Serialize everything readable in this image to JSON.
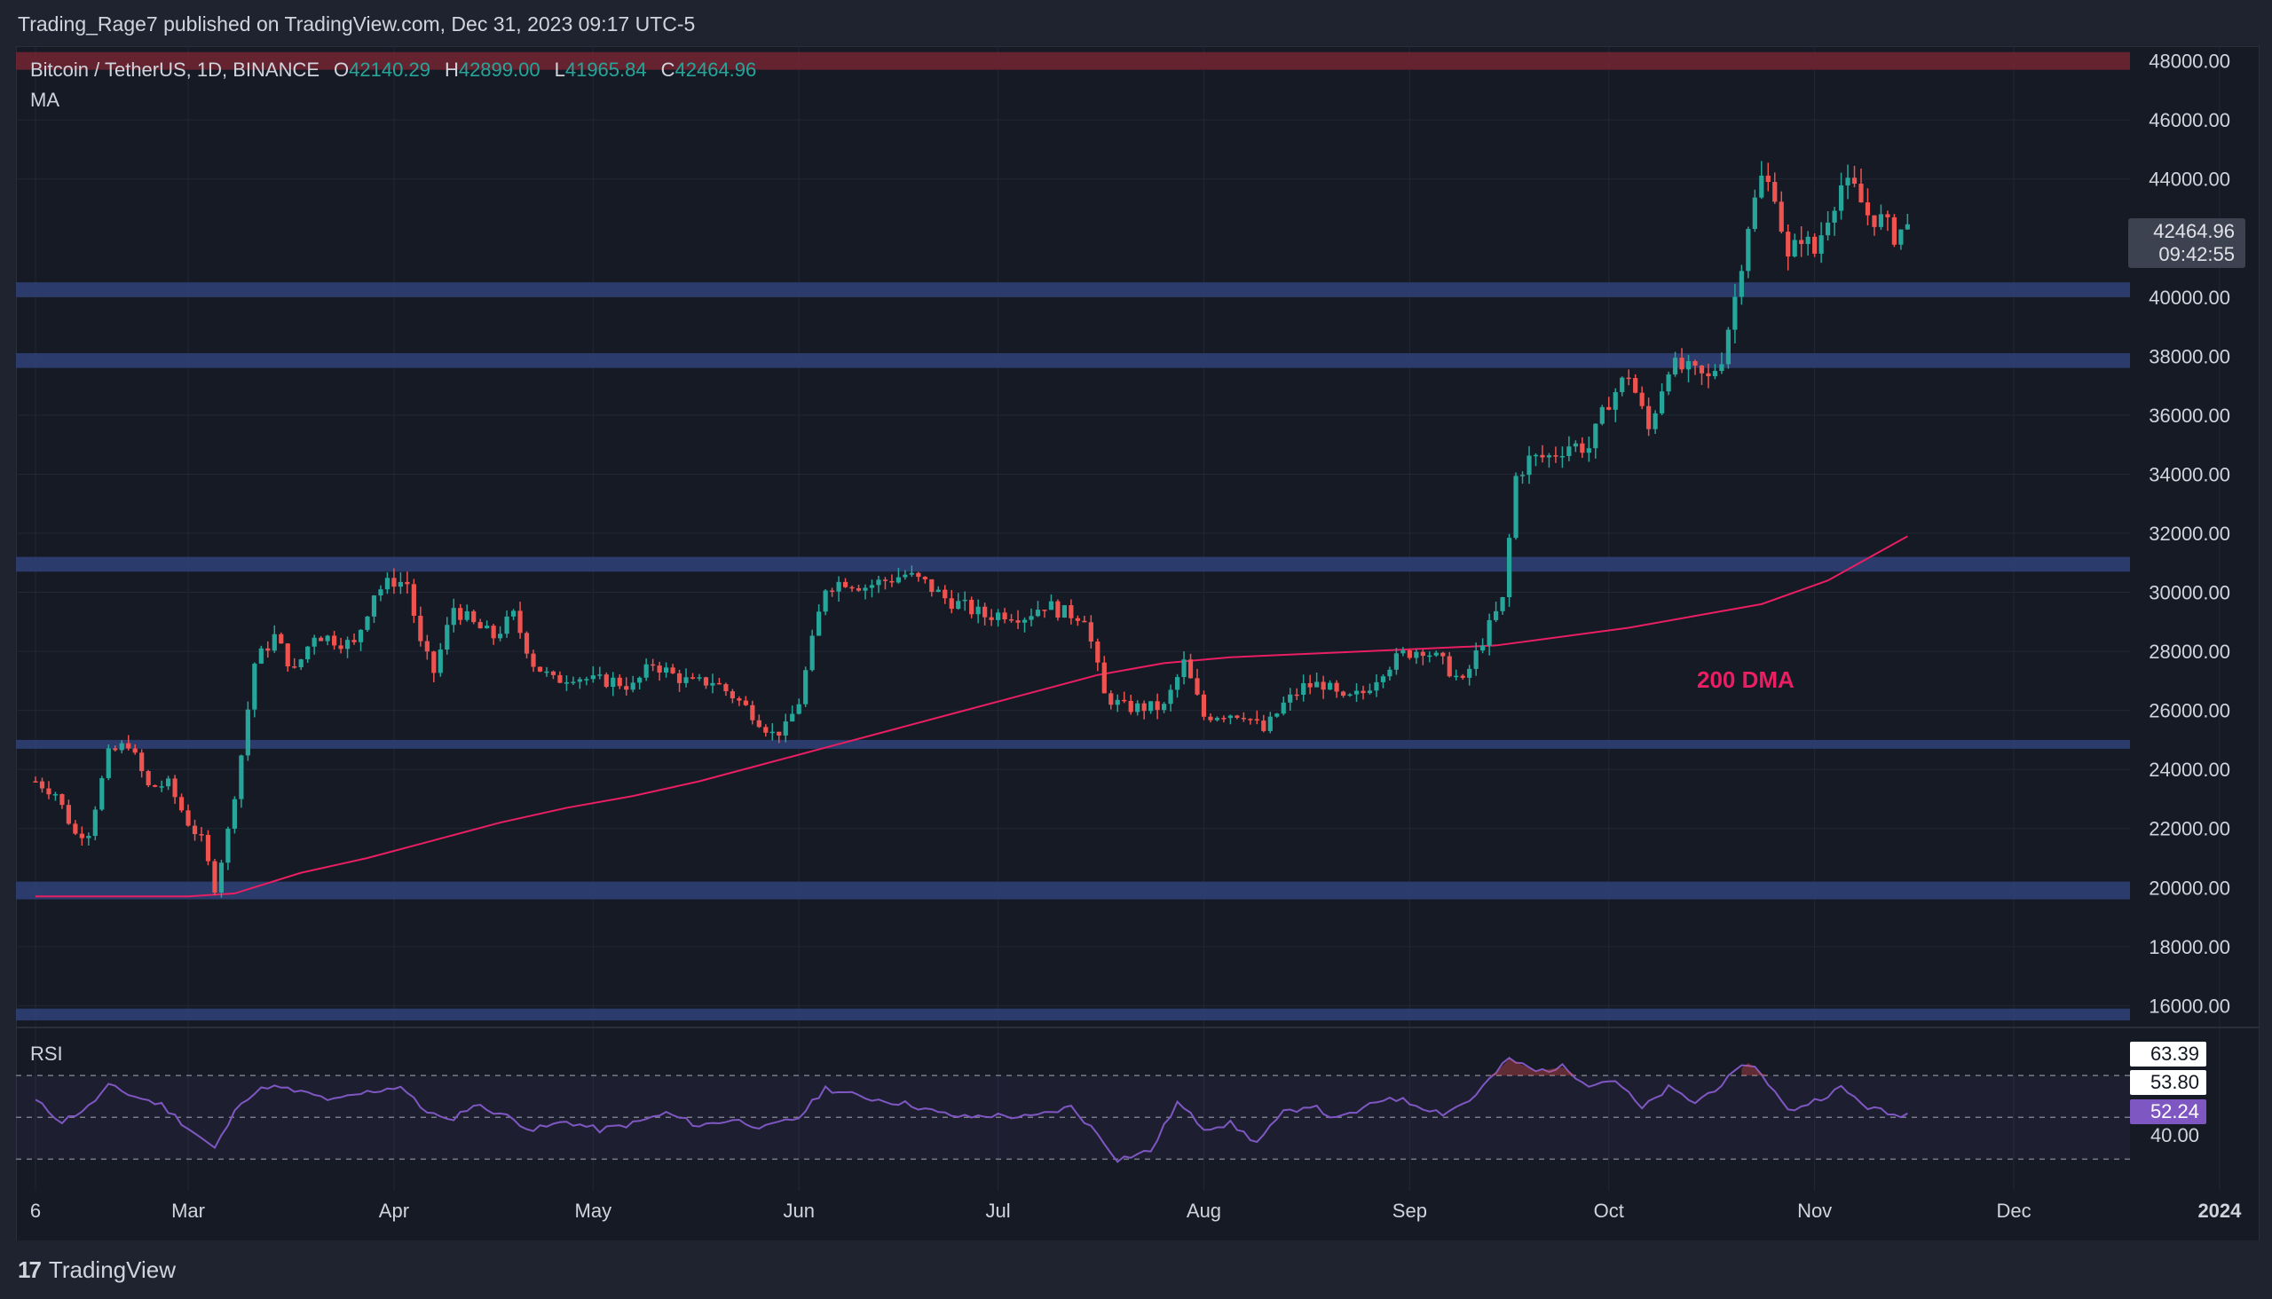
{
  "header": {
    "publish_line": "Trading_Rage7 published on TradingView.com, Dec 31, 2023 09:17 UTC-5"
  },
  "legend": {
    "symbol": "Bitcoin / TetherUS, 1D, BINANCE",
    "o_label": "O",
    "o_value": "42140.29",
    "h_label": "H",
    "h_value": "42899.00",
    "l_label": "L",
    "l_value": "41965.84",
    "c_label": "C",
    "c_value": "42464.96",
    "ma_label": "MA"
  },
  "price_badge": {
    "price": "42464.96",
    "countdown": "09:42:55"
  },
  "rsi": {
    "label": "RSI",
    "badge_top": "63.39",
    "badge_mid": "53.80",
    "badge_current": "52.24",
    "badge_low": "40.00"
  },
  "annotation": {
    "dma_label": "200 DMA"
  },
  "footer": {
    "logo_mark": "17",
    "logo_text": "TradingView"
  },
  "colors": {
    "up": "#26a69a",
    "down": "#ef5350",
    "ma": "#e91e63",
    "zone": "#2e3f73",
    "resistance": "#6e2532",
    "rsi_line": "#7e57c2"
  },
  "chart_data": {
    "type": "candlestick",
    "ylim": [
      15500,
      48500
    ],
    "y_ticks": [
      "48000.00",
      "46000.00",
      "44000.00",
      "40000.00",
      "38000.00",
      "36000.00",
      "34000.00",
      "32000.00",
      "30000.00",
      "28000.00",
      "26000.00",
      "24000.00",
      "22000.00",
      "20000.00",
      "18000.00",
      "16000.00"
    ],
    "x_ticks": [
      {
        "label": "6",
        "day": 0
      },
      {
        "label": "Mar",
        "day": 23
      },
      {
        "label": "Apr",
        "day": 54
      },
      {
        "label": "May",
        "day": 84
      },
      {
        "label": "Jun",
        "day": 115
      },
      {
        "label": "Jul",
        "day": 145
      },
      {
        "label": "Aug",
        "day": 176
      },
      {
        "label": "Sep",
        "day": 207
      },
      {
        "label": "Oct",
        "day": 237
      },
      {
        "label": "Nov",
        "day": 268
      },
      {
        "label": "Dec",
        "day": 298
      },
      {
        "label": "2024",
        "day": 329
      }
    ],
    "support_resistance_zones": [
      {
        "low": 47700,
        "high": 48300,
        "kind": "resistance"
      },
      {
        "low": 40000,
        "high": 40500,
        "kind": "support"
      },
      {
        "low": 37600,
        "high": 38100,
        "kind": "support"
      },
      {
        "low": 30700,
        "high": 31200,
        "kind": "support"
      },
      {
        "low": 24700,
        "high": 25000,
        "kind": "support"
      },
      {
        "low": 19600,
        "high": 20200,
        "kind": "support"
      },
      {
        "low": 15500,
        "high": 15900,
        "kind": "support"
      }
    ],
    "close_keypoints": [
      [
        0,
        23600
      ],
      [
        3,
        23200
      ],
      [
        6,
        21800
      ],
      [
        8,
        21900
      ],
      [
        11,
        24500
      ],
      [
        14,
        24900
      ],
      [
        17,
        23400
      ],
      [
        20,
        23500
      ],
      [
        23,
        22200
      ],
      [
        25,
        21600
      ],
      [
        27,
        20000
      ],
      [
        29,
        21900
      ],
      [
        31,
        24500
      ],
      [
        33,
        27600
      ],
      [
        36,
        28500
      ],
      [
        39,
        27300
      ],
      [
        42,
        28600
      ],
      [
        45,
        28400
      ],
      [
        48,
        28200
      ],
      [
        51,
        30000
      ],
      [
        54,
        30400
      ],
      [
        56,
        30300
      ],
      [
        58,
        28200
      ],
      [
        60,
        27300
      ],
      [
        63,
        29500
      ],
      [
        66,
        28900
      ],
      [
        69,
        28500
      ],
      [
        72,
        29200
      ],
      [
        75,
        27600
      ],
      [
        78,
        27000
      ],
      [
        81,
        27200
      ],
      [
        84,
        27000
      ],
      [
        87,
        27000
      ],
      [
        90,
        26800
      ],
      [
        93,
        27600
      ],
      [
        96,
        27200
      ],
      [
        99,
        26900
      ],
      [
        102,
        27000
      ],
      [
        105,
        26500
      ],
      [
        108,
        25900
      ],
      [
        111,
        25200
      ],
      [
        113,
        25400
      ],
      [
        115,
        26300
      ],
      [
        117,
        28300
      ],
      [
        119,
        30200
      ],
      [
        122,
        30400
      ],
      [
        125,
        30200
      ],
      [
        128,
        30400
      ],
      [
        131,
        30600
      ],
      [
        134,
        30300
      ],
      [
        137,
        29800
      ],
      [
        140,
        29500
      ],
      [
        143,
        29200
      ],
      [
        146,
        29300
      ],
      [
        149,
        29200
      ],
      [
        152,
        29600
      ],
      [
        155,
        29300
      ],
      [
        158,
        29200
      ],
      [
        161,
        26500
      ],
      [
        164,
        26100
      ],
      [
        167,
        26100
      ],
      [
        170,
        26100
      ],
      [
        173,
        27600
      ],
      [
        176,
        25800
      ],
      [
        179,
        25900
      ],
      [
        182,
        25900
      ],
      [
        185,
        25300
      ],
      [
        188,
        26200
      ],
      [
        191,
        26800
      ],
      [
        194,
        26900
      ],
      [
        197,
        26300
      ],
      [
        200,
        26600
      ],
      [
        203,
        27400
      ],
      [
        206,
        27900
      ],
      [
        209,
        28100
      ],
      [
        212,
        27600
      ],
      [
        215,
        26900
      ],
      [
        218,
        28400
      ],
      [
        221,
        29700
      ],
      [
        223,
        33900
      ],
      [
        225,
        34500
      ],
      [
        228,
        34600
      ],
      [
        231,
        35000
      ],
      [
        234,
        34900
      ],
      [
        237,
        36500
      ],
      [
        240,
        37400
      ],
      [
        243,
        35500
      ],
      [
        246,
        37700
      ],
      [
        249,
        37500
      ],
      [
        252,
        37200
      ],
      [
        254,
        38000
      ],
      [
        256,
        40000
      ],
      [
        258,
        42500
      ],
      [
        260,
        44000
      ],
      [
        262,
        43600
      ],
      [
        264,
        41200
      ],
      [
        266,
        42100
      ],
      [
        268,
        41500
      ],
      [
        270,
        42800
      ],
      [
        272,
        43800
      ],
      [
        274,
        43600
      ],
      [
        276,
        42800
      ],
      [
        278,
        42600
      ],
      [
        280,
        42100
      ],
      [
        282,
        42465
      ]
    ],
    "ma200_keypoints": [
      [
        0,
        19700
      ],
      [
        23,
        19700
      ],
      [
        30,
        19800
      ],
      [
        40,
        20500
      ],
      [
        50,
        21000
      ],
      [
        60,
        21600
      ],
      [
        70,
        22200
      ],
      [
        80,
        22700
      ],
      [
        90,
        23100
      ],
      [
        100,
        23600
      ],
      [
        110,
        24200
      ],
      [
        120,
        24800
      ],
      [
        130,
        25400
      ],
      [
        140,
        26000
      ],
      [
        150,
        26600
      ],
      [
        160,
        27200
      ],
      [
        170,
        27600
      ],
      [
        180,
        27800
      ],
      [
        190,
        27900
      ],
      [
        200,
        28000
      ],
      [
        210,
        28100
      ],
      [
        220,
        28200
      ],
      [
        230,
        28500
      ],
      [
        240,
        28800
      ],
      [
        250,
        29200
      ],
      [
        260,
        29600
      ],
      [
        270,
        30400
      ],
      [
        282,
        31900
      ]
    ],
    "rsi_keypoints": [
      [
        0,
        58
      ],
      [
        4,
        48
      ],
      [
        8,
        55
      ],
      [
        11,
        65
      ],
      [
        15,
        60
      ],
      [
        19,
        56
      ],
      [
        23,
        45
      ],
      [
        27,
        35
      ],
      [
        31,
        58
      ],
      [
        35,
        65
      ],
      [
        40,
        62
      ],
      [
        45,
        58
      ],
      [
        50,
        62
      ],
      [
        55,
        65
      ],
      [
        58,
        55
      ],
      [
        62,
        48
      ],
      [
        66,
        56
      ],
      [
        70,
        52
      ],
      [
        75,
        44
      ],
      [
        80,
        48
      ],
      [
        85,
        44
      ],
      [
        90,
        47
      ],
      [
        95,
        52
      ],
      [
        100,
        46
      ],
      [
        105,
        49
      ],
      [
        110,
        45
      ],
      [
        115,
        50
      ],
      [
        119,
        64
      ],
      [
        124,
        60
      ],
      [
        128,
        58
      ],
      [
        132,
        56
      ],
      [
        136,
        52
      ],
      [
        140,
        50
      ],
      [
        144,
        51
      ],
      [
        150,
        50
      ],
      [
        156,
        55
      ],
      [
        160,
        42
      ],
      [
        163,
        30
      ],
      [
        168,
        34
      ],
      [
        172,
        57
      ],
      [
        176,
        45
      ],
      [
        180,
        47
      ],
      [
        184,
        38
      ],
      [
        188,
        52
      ],
      [
        192,
        56
      ],
      [
        196,
        49
      ],
      [
        200,
        54
      ],
      [
        204,
        60
      ],
      [
        208,
        56
      ],
      [
        212,
        52
      ],
      [
        216,
        58
      ],
      [
        219,
        68
      ],
      [
        222,
        78
      ],
      [
        226,
        72
      ],
      [
        230,
        74
      ],
      [
        234,
        66
      ],
      [
        238,
        68
      ],
      [
        242,
        54
      ],
      [
        246,
        64
      ],
      [
        250,
        57
      ],
      [
        254,
        66
      ],
      [
        258,
        76
      ],
      [
        260,
        71
      ],
      [
        264,
        53
      ],
      [
        268,
        58
      ],
      [
        272,
        64
      ],
      [
        276,
        55
      ],
      [
        280,
        51
      ],
      [
        282,
        52
      ]
    ],
    "rsi_bands": {
      "upper": 70,
      "middle": 50,
      "lower": 30
    }
  }
}
